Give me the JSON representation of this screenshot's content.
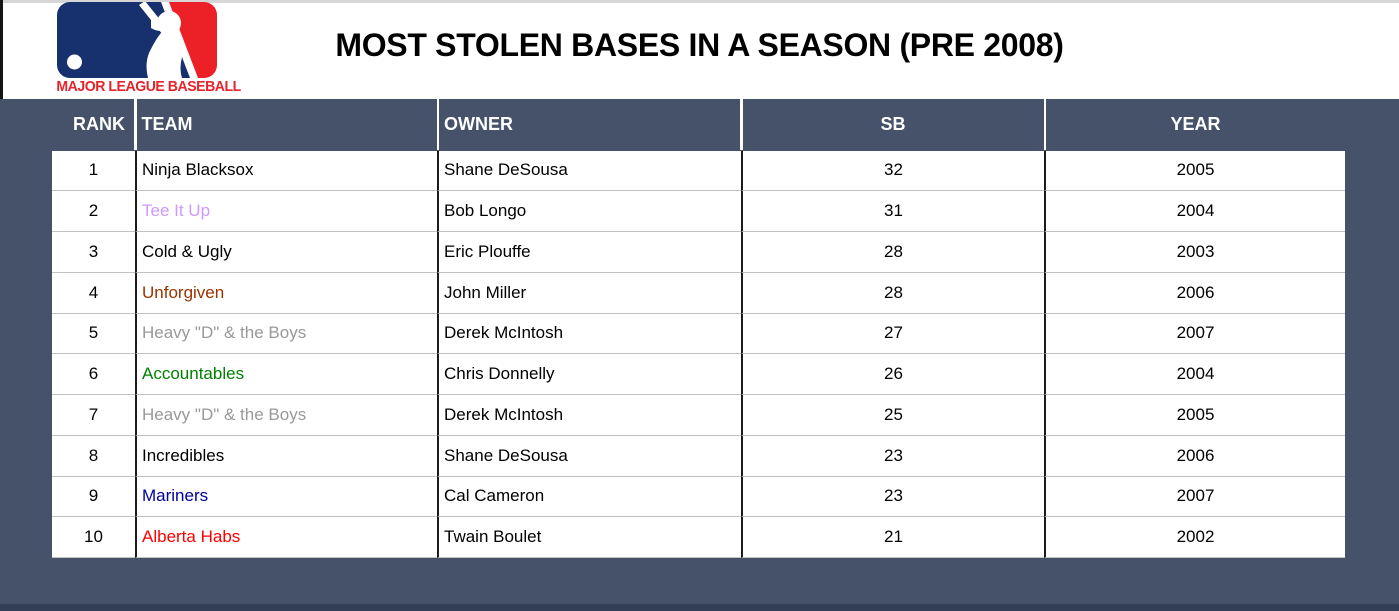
{
  "banner": {
    "title": "MOST STOLEN BASES IN A SEASON (PRE 2008)",
    "logo_caption": "MAJOR LEAGUE BASEBALL",
    "logo_icon": "mlb-batter-logo"
  },
  "table": {
    "columns": [
      "RANK",
      "TEAM",
      "OWNER",
      "SB",
      "YEAR"
    ],
    "rows": [
      {
        "rank": "1",
        "team": "Ninja Blacksox",
        "team_color": "#000000",
        "owner": "Shane DeSousa",
        "sb": "32",
        "year": "2005"
      },
      {
        "rank": "2",
        "team": "Tee It Up",
        "team_color": "#CC99FF",
        "owner": "Bob Longo",
        "sb": "31",
        "year": "2004"
      },
      {
        "rank": "3",
        "team": "Cold & Ugly",
        "team_color": "#000000",
        "owner": "Eric Plouffe",
        "sb": "28",
        "year": "2003"
      },
      {
        "rank": "4",
        "team": "Unforgiven",
        "team_color": "#993300",
        "owner": "John Miller",
        "sb": "28",
        "year": "2006"
      },
      {
        "rank": "5",
        "team": "Heavy \"D\" & the Boys",
        "team_color": "#999999",
        "owner": "Derek McIntosh",
        "sb": "27",
        "year": "2007"
      },
      {
        "rank": "6",
        "team": "Accountables",
        "team_color": "#008000",
        "owner": "Chris Donnelly",
        "sb": "26",
        "year": "2004"
      },
      {
        "rank": "7",
        "team": "Heavy \"D\" & the Boys",
        "team_color": "#999999",
        "owner": "Derek McIntosh",
        "sb": "25",
        "year": "2005"
      },
      {
        "rank": "8",
        "team": "Incredibles",
        "team_color": "#000000",
        "owner": "Shane DeSousa",
        "sb": "23",
        "year": "2006"
      },
      {
        "rank": "9",
        "team": "Mariners",
        "team_color": "#000099",
        "owner": "Cal Cameron",
        "sb": "23",
        "year": "2007"
      },
      {
        "rank": "10",
        "team": "Alberta Habs",
        "team_color": "#FF0000",
        "owner": "Twain Boulet",
        "sb": "21",
        "year": "2002"
      }
    ]
  },
  "colors": {
    "background_dark": "#455269",
    "bottom_edge": "#333F54",
    "header_text": "#FFFFFF",
    "row_separator": "#C2C2C2",
    "column_separator": "#1B1B1B",
    "mlb_blue": "#16316E",
    "mlb_red": "#EC2127",
    "logo_caption_red": "#E3252C"
  }
}
